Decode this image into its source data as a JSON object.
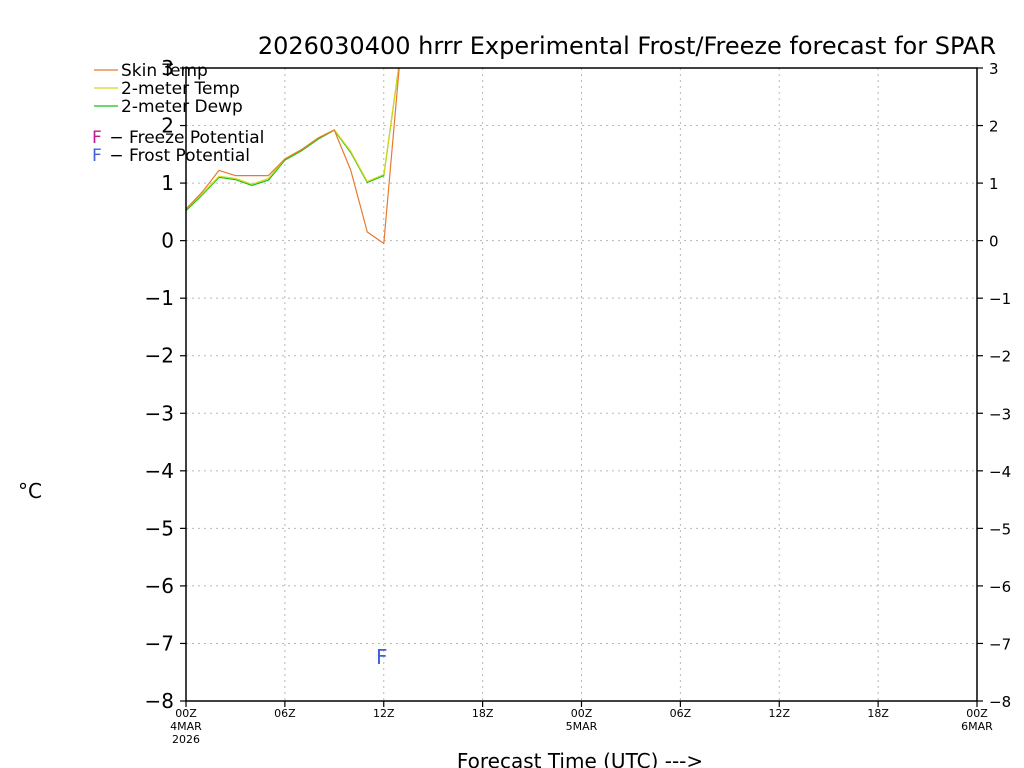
{
  "chart_data": {
    "type": "line",
    "title": "2026030400 hrrr Experimental Frost/Freeze forecast for SPAR",
    "xlabel": "Forecast Time (UTC) --->",
    "ylabel": "°C",
    "ylim": [
      -8,
      3
    ],
    "yticks": [
      3,
      2,
      1,
      0,
      -1,
      -2,
      -3,
      -4,
      -5,
      -6,
      -7,
      -8
    ],
    "ytick_labels": [
      "3",
      "2",
      "1",
      "0",
      "−1",
      "−2",
      "−3",
      "−4",
      "−5",
      "−6",
      "−7",
      "−8"
    ],
    "xlim": [
      0,
      48
    ],
    "xticks": [
      {
        "hour": 0,
        "label": "00Z",
        "sub1": "4MAR",
        "sub2": "2026"
      },
      {
        "hour": 6,
        "label": "06Z",
        "sub1": "",
        "sub2": ""
      },
      {
        "hour": 12,
        "label": "12Z",
        "sub1": "",
        "sub2": ""
      },
      {
        "hour": 18,
        "label": "18Z",
        "sub1": "",
        "sub2": ""
      },
      {
        "hour": 24,
        "label": "00Z",
        "sub1": "5MAR",
        "sub2": ""
      },
      {
        "hour": 30,
        "label": "06Z",
        "sub1": "",
        "sub2": ""
      },
      {
        "hour": 36,
        "label": "12Z",
        "sub1": "",
        "sub2": ""
      },
      {
        "hour": 42,
        "label": "18Z",
        "sub1": "",
        "sub2": ""
      },
      {
        "hour": 48,
        "label": "00Z",
        "sub1": "6MAR",
        "sub2": ""
      }
    ],
    "grid": true,
    "series": [
      {
        "name": "Skin Temp",
        "color": "#e87a30",
        "x": [
          0,
          1,
          2,
          3,
          4,
          5,
          6,
          7,
          8,
          9,
          10,
          11,
          12,
          13
        ],
        "values": [
          0.55,
          0.85,
          1.22,
          1.13,
          1.13,
          1.13,
          1.42,
          1.58,
          1.78,
          1.92,
          1.22,
          0.15,
          -0.05,
          3.2
        ]
      },
      {
        "name": "2-meter Temp",
        "color": "#d8d820",
        "x": [
          0,
          1,
          2,
          3,
          4,
          5,
          6,
          7,
          8,
          9,
          10,
          11,
          12,
          13
        ],
        "values": [
          0.55,
          0.82,
          1.12,
          1.08,
          0.98,
          1.08,
          1.42,
          1.58,
          1.78,
          1.93,
          1.55,
          1.03,
          1.15,
          3.2
        ]
      },
      {
        "name": "2-meter Dewp",
        "color": "#10c010",
        "x": [
          0,
          1,
          2,
          3,
          4,
          5,
          6,
          7,
          8,
          9,
          10,
          11,
          12,
          13
        ],
        "values": [
          0.52,
          0.8,
          1.1,
          1.06,
          0.96,
          1.05,
          1.4,
          1.56,
          1.76,
          1.92,
          1.53,
          1.01,
          1.13,
          3.2
        ]
      }
    ],
    "potential_legend": [
      {
        "symbol": "F",
        "text": " − Freeze Potential",
        "color": "#c01890"
      },
      {
        "symbol": "F",
        "text": " − Frost Potential",
        "color": "#4060d8"
      }
    ],
    "markers": [
      {
        "symbol": "F",
        "hour": 12,
        "value": -7.2,
        "color": "#4060d8",
        "kind": "frost"
      }
    ]
  }
}
